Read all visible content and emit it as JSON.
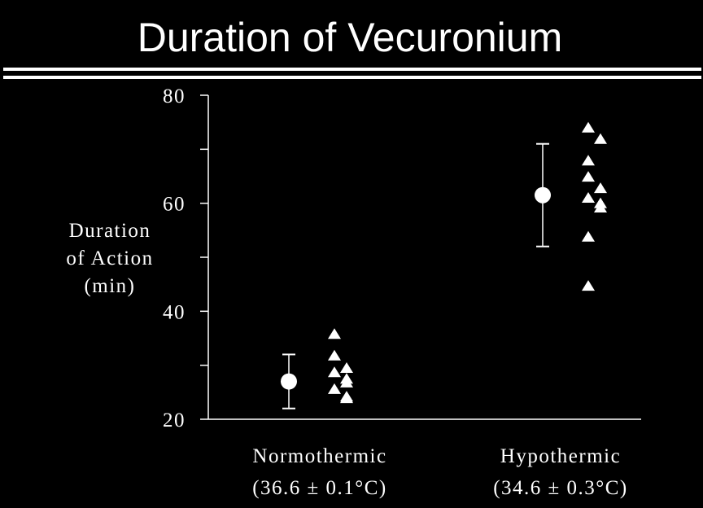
{
  "chart_data": {
    "type": "scatter",
    "title": "Duration of Vecuronium",
    "y_label": [
      "Duration",
      "of Action",
      "(min)"
    ],
    "categories": [
      "Normothermic",
      "Hypothermic"
    ],
    "category_sublabels": [
      "(36.6 ± 0.1°C)",
      "(34.6 ± 0.3°C)"
    ],
    "ylim": [
      20,
      80
    ],
    "yticks": [
      20,
      40,
      60,
      80
    ],
    "minor_yticks": [
      30,
      50,
      70
    ],
    "color": "#ffffff",
    "groups": [
      {
        "mean": 27,
        "sd": 5,
        "points": [
          35.8,
          31.8,
          29.5,
          28.7,
          27.5,
          26.8,
          25.6,
          24.2,
          23.9
        ]
      },
      {
        "mean": 61.5,
        "sd": 9.5,
        "points": [
          74,
          71.9,
          67.9,
          64.9,
          62.8,
          61,
          60,
          59.2,
          53.8,
          44.7
        ]
      }
    ]
  }
}
